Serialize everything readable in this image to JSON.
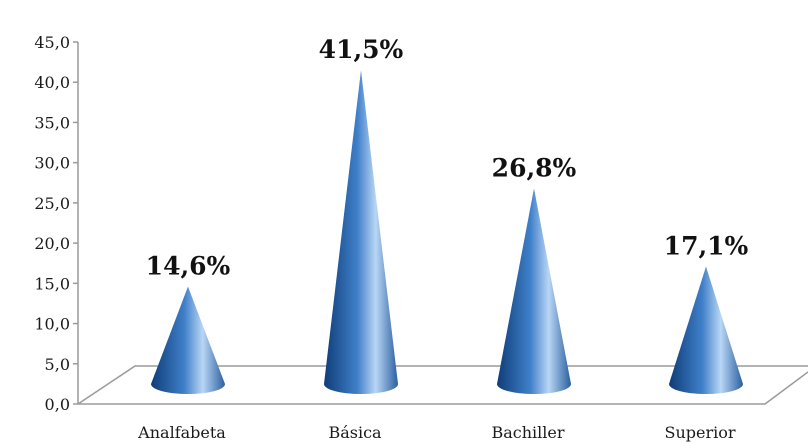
{
  "chart_data": {
    "type": "bar",
    "bar_shape": "cone",
    "view": "3d",
    "categories": [
      "Analfabeta",
      "Básica",
      "Bachiller",
      "Superior"
    ],
    "values": [
      14.6,
      41.5,
      26.8,
      17.1
    ],
    "data_labels": [
      "14,6%",
      "41,5%",
      "26,8%",
      "17,1%"
    ],
    "y_ticks": [
      "0,0",
      "5,0",
      "10,0",
      "15,0",
      "20,0",
      "25,0",
      "30,0",
      "35,0",
      "40,0",
      "45,0"
    ],
    "ylim": [
      0,
      45
    ],
    "grid": false,
    "legend": "none",
    "colors": {
      "cone_dark": "#0f3d78",
      "cone_mid": "#3f7fc9",
      "cone_light": "#b9d6f5",
      "floor_edge": "#9a9a9a",
      "text": "#1a1a1a"
    }
  }
}
